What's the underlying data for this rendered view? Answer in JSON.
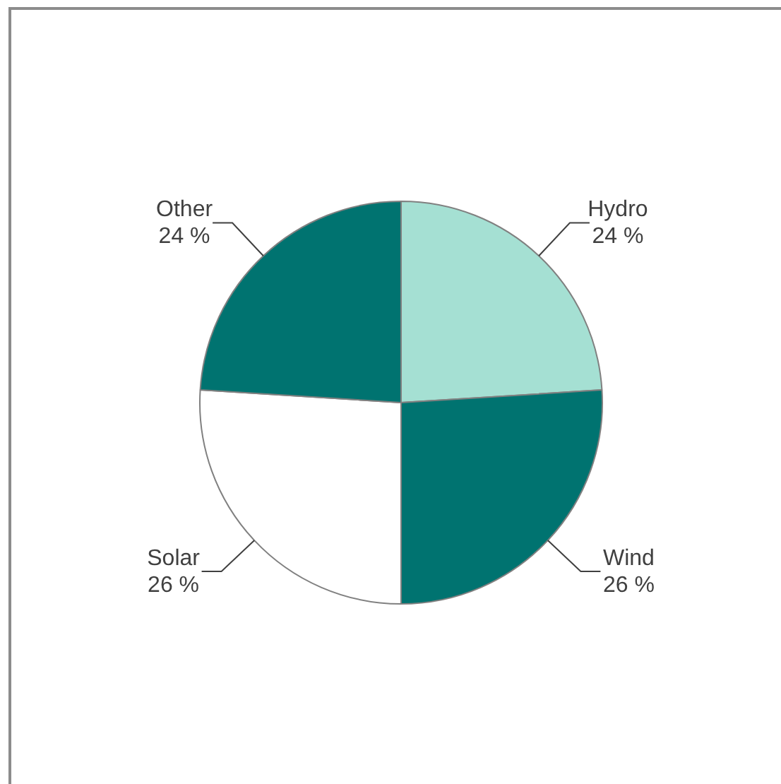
{
  "chart_data": {
    "type": "pie",
    "categories": [
      "Hydro",
      "Wind",
      "Solar",
      "Other"
    ],
    "values": [
      24,
      26,
      26,
      24
    ],
    "value_labels": [
      "24 %",
      "26 %",
      "26 %",
      "24 %"
    ],
    "colors": [
      "#a5e0d3",
      "#007370",
      "#ffffff",
      "#007370"
    ],
    "legend": false
  }
}
